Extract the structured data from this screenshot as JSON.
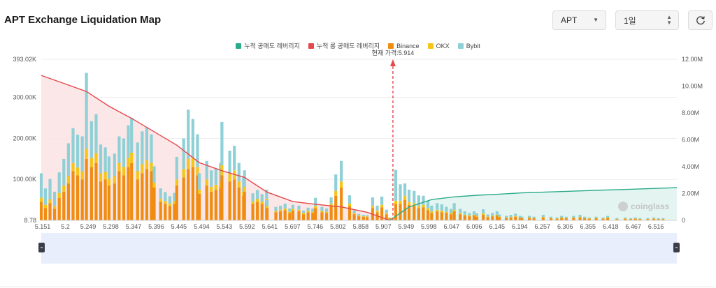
{
  "header": {
    "title": "APT Exchange Liquidation Map",
    "asset_select": "APT",
    "range_select": "1일"
  },
  "legend": [
    {
      "label": "누적 공매도 레버리지",
      "color": "#2bab8a"
    },
    {
      "label": "누적 롱 공매도 레버리지",
      "color": "#e5484d"
    },
    {
      "label": "Binance",
      "color": "#f08c12"
    },
    {
      "label": "OKX",
      "color": "#f5c518"
    },
    {
      "label": "Bybit",
      "color": "#8fd0d6"
    }
  ],
  "current_price_label": "현재 가격:5.914",
  "watermark": "coinglass",
  "chart_data": {
    "type": "bar",
    "title": "APT Exchange Liquidation Map",
    "current_price": 5.914,
    "x_tick_labels": [
      "5.151",
      "5.2",
      "5.249",
      "5.298",
      "5.347",
      "5.396",
      "5.445",
      "5.494",
      "5.543",
      "5.592",
      "5.641",
      "5.697",
      "5.746",
      "5.802",
      "5.858",
      "5.907",
      "5.949",
      "5.998",
      "6.047",
      "6.096",
      "6.145",
      "6.194",
      "6.257",
      "6.306",
      "6.355",
      "6.418",
      "6.467",
      "6.516"
    ],
    "y_left_ticks": [
      "8.78",
      "100.00K",
      "200.00K",
      "300.00K",
      "393.02K"
    ],
    "y_left_range": [
      8.78,
      393020
    ],
    "y_right_ticks": [
      "0",
      "2.00M",
      "4.00M",
      "6.00M",
      "8.00M",
      "10.00M",
      "12.00M"
    ],
    "y_right_range": [
      0,
      12000000
    ],
    "exchange_bars": {
      "note": "approximate liquidation leverage per price level (stacked Binance, OKX, Bybit), in left-axis units",
      "prices": [
        5.151,
        5.16,
        5.17,
        5.18,
        5.19,
        5.2,
        5.21,
        5.22,
        5.23,
        5.24,
        5.249,
        5.26,
        5.27,
        5.28,
        5.29,
        5.298,
        5.31,
        5.32,
        5.33,
        5.34,
        5.347,
        5.36,
        5.37,
        5.38,
        5.39,
        5.396,
        5.41,
        5.42,
        5.43,
        5.44,
        5.445,
        5.46,
        5.47,
        5.48,
        5.49,
        5.494,
        5.51,
        5.52,
        5.53,
        5.54,
        5.543,
        5.56,
        5.57,
        5.58,
        5.59,
        5.592,
        5.61,
        5.62,
        5.63,
        5.64,
        5.641,
        5.66,
        5.67,
        5.68,
        5.69,
        5.697,
        5.71,
        5.72,
        5.73,
        5.74,
        5.746,
        5.76,
        5.77,
        5.78,
        5.79,
        5.802,
        5.82,
        5.83,
        5.84,
        5.85,
        5.858,
        5.87,
        5.88,
        5.89,
        5.9,
        5.907,
        5.92,
        5.93,
        5.94,
        5.949,
        5.96,
        5.97,
        5.98,
        5.99,
        5.998,
        6.01,
        6.02,
        6.03,
        6.04,
        6.047,
        6.06,
        6.07,
        6.08,
        6.09,
        6.096,
        6.11,
        6.12,
        6.13,
        6.14,
        6.145,
        6.16,
        6.17,
        6.18,
        6.19,
        6.194,
        6.21,
        6.22,
        6.24,
        6.257,
        6.27,
        6.28,
        6.29,
        6.306,
        6.32,
        6.33,
        6.34,
        6.355,
        6.37,
        6.38,
        6.4,
        6.418,
        6.43,
        6.44,
        6.45,
        6.467,
        6.48,
        6.49,
        6.5,
        6.516,
        6.53
      ],
      "binance": [
        45000,
        30000,
        42000,
        28000,
        55000,
        70000,
        90000,
        120000,
        110000,
        100000,
        150000,
        130000,
        140000,
        95000,
        100000,
        85000,
        90000,
        120000,
        110000,
        130000,
        140000,
        100000,
        115000,
        125000,
        120000,
        80000,
        45000,
        40000,
        35000,
        40000,
        85000,
        105000,
        125000,
        130000,
        110000,
        65000,
        85000,
        70000,
        75000,
        80000,
        110000,
        95000,
        100000,
        80000,
        60000,
        70000,
        40000,
        45000,
        40000,
        45000,
        30000,
        20000,
        22000,
        25000,
        18000,
        24000,
        22000,
        15000,
        20000,
        18000,
        30000,
        20000,
        18000,
        35000,
        60000,
        80000,
        35000,
        15000,
        10000,
        9000,
        8000,
        30000,
        20000,
        32000,
        15000,
        5000,
        40000,
        40000,
        50000,
        38000,
        35000,
        30000,
        32000,
        25000,
        18000,
        22000,
        20000,
        18000,
        15000,
        22000,
        15000,
        12000,
        10000,
        12000,
        9000,
        14000,
        8000,
        10000,
        12000,
        8000,
        6000,
        7000,
        9000,
        6000,
        5000,
        6000,
        5000,
        7000,
        5000,
        4000,
        6000,
        5000,
        6000,
        7000,
        5000,
        4000,
        5000,
        4000,
        6000,
        3000,
        4000,
        3000,
        4000,
        3000,
        3000,
        4000,
        3000,
        3000
      ],
      "okx": [
        10000,
        8000,
        9000,
        7000,
        12000,
        15000,
        18000,
        20000,
        19000,
        20000,
        25000,
        22000,
        24000,
        20000,
        18000,
        16000,
        18000,
        20000,
        20000,
        22000,
        25000,
        20000,
        22000,
        22000,
        20000,
        12000,
        8000,
        7000,
        6000,
        7000,
        15000,
        20000,
        25000,
        22000,
        20000,
        10000,
        15000,
        12000,
        12000,
        15000,
        25000,
        20000,
        22000,
        15000,
        10000,
        12000,
        6000,
        7000,
        6000,
        8000,
        5000,
        3000,
        4000,
        4000,
        3000,
        4000,
        4000,
        3000,
        3000,
        3000,
        5000,
        3000,
        3000,
        6000,
        12000,
        15000,
        6000,
        3000,
        2000,
        1500,
        1500,
        6000,
        4000,
        6000,
        3000,
        1000,
        8000,
        8000,
        10000,
        7000,
        7000,
        6000,
        6000,
        5000,
        4000,
        4000,
        4000,
        3000,
        3000,
        4000,
        3000,
        2000,
        2000,
        2000,
        2000,
        3000,
        1500,
        2000,
        2000,
        1500,
        1000,
        1500,
        1500,
        1000,
        1000,
        1000,
        1000,
        1500,
        1000,
        800,
        1000,
        1000,
        1000,
        1500,
        1000,
        800,
        1000,
        800,
        1000,
        600,
        800,
        600,
        800,
        600,
        600,
        800,
        600,
        600
      ],
      "bybit": [
        60000,
        40000,
        50000,
        35000,
        50000,
        65000,
        80000,
        85000,
        80000,
        85000,
        185000,
        90000,
        95000,
        70000,
        60000,
        55000,
        55000,
        65000,
        70000,
        80000,
        85000,
        70000,
        80000,
        80000,
        70000,
        40000,
        25000,
        22000,
        18000,
        20000,
        55000,
        75000,
        120000,
        95000,
        80000,
        40000,
        45000,
        40000,
        40000,
        45000,
        105000,
        55000,
        60000,
        45000,
        35000,
        40000,
        20000,
        22000,
        18000,
        22000,
        15000,
        10000,
        10000,
        12000,
        8000,
        10000,
        10000,
        6000,
        8000,
        8000,
        20000,
        10000,
        8000,
        15000,
        40000,
        50000,
        20000,
        6000,
        4000,
        3000,
        3000,
        20000,
        12000,
        20000,
        8000,
        1000,
        75000,
        40000,
        30000,
        30000,
        30000,
        25000,
        22000,
        18000,
        14000,
        16000,
        15000,
        12000,
        10000,
        16000,
        10000,
        8000,
        6000,
        8000,
        6000,
        10000,
        5000,
        6000,
        8000,
        5000,
        4000,
        5000,
        6000,
        4000,
        3000,
        4000,
        3000,
        5000,
        3000,
        2500,
        4000,
        3000,
        4000,
        5000,
        3000,
        2500,
        3000,
        2500,
        4000,
        2000,
        2500,
        2000,
        2500,
        2000,
        2000,
        2500,
        2000,
        2000
      ]
    },
    "cumulative_long": {
      "name": "누적 롱 공매도 레버리지",
      "note": "approximate cumulative value in right-axis units",
      "x": [
        5.151,
        5.2,
        5.249,
        5.298,
        5.347,
        5.396,
        5.445,
        5.494,
        5.543,
        5.592,
        5.641,
        5.697,
        5.746,
        5.802,
        5.858,
        5.907
      ],
      "y": [
        10800000,
        10200000,
        9600000,
        8500000,
        7600000,
        6600000,
        5600000,
        4300000,
        3700000,
        3200000,
        2100000,
        1400000,
        1200000,
        1000000,
        600000,
        0
      ]
    },
    "cumulative_short": {
      "name": "누적 공매도 레버리지",
      "note": "approximate cumulative value in right-axis units",
      "x": [
        5.907,
        5.949,
        5.998,
        6.047,
        6.096,
        6.145,
        6.194,
        6.257,
        6.306,
        6.355,
        6.418,
        6.467,
        6.516,
        6.53
      ],
      "y": [
        0,
        1000000,
        1550000,
        1750000,
        1870000,
        1950000,
        2050000,
        2120000,
        2180000,
        2240000,
        2300000,
        2360000,
        2420000,
        2450000
      ]
    }
  }
}
